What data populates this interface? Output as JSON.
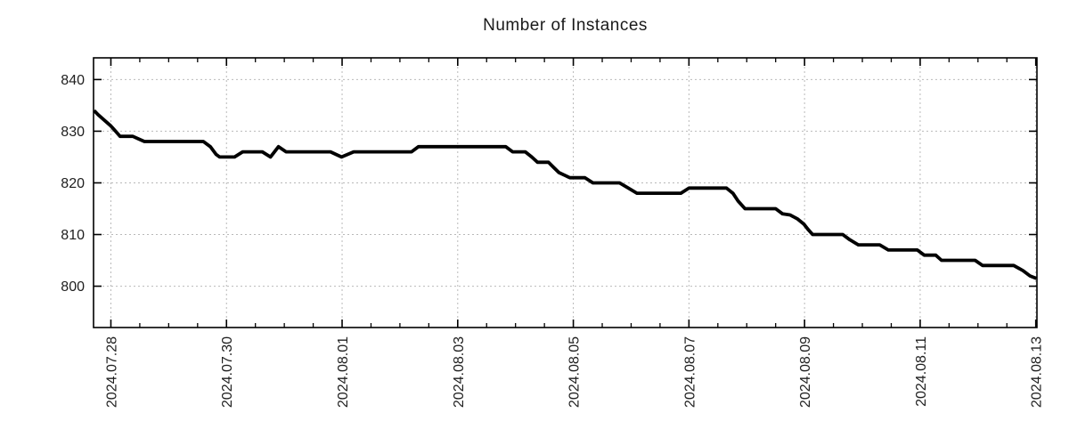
{
  "chart_data": {
    "type": "line",
    "title": "Number of Instances",
    "x_axis": {
      "tick_labels": [
        "2024.07.28",
        "2024.07.30",
        "2024.08.01",
        "2024.08.03",
        "2024.08.05",
        "2024.08.07",
        "2024.08.09",
        "2024.08.11",
        "2024.08.13"
      ],
      "tick_days": [
        0,
        2,
        4,
        6,
        8,
        10,
        12,
        14,
        16
      ],
      "minor_tick_interval_days": 0.5,
      "range_days": [
        -0.3,
        16.02
      ],
      "label_rotation_deg": -90
    },
    "y_axis": {
      "ticks": [
        800,
        810,
        820,
        830,
        840
      ],
      "range": [
        792.0,
        844.2
      ]
    },
    "grid": true,
    "legend": false,
    "colors": {
      "line": "#000000",
      "grid": "#b9b9b9",
      "frame": "#000000",
      "text": "#202020"
    },
    "series": [
      {
        "name": "instances",
        "points": [
          [
            -0.29,
            834
          ],
          [
            -0.22,
            833.2
          ],
          [
            -0.12,
            832.2
          ],
          [
            0.0,
            831
          ],
          [
            0.08,
            830
          ],
          [
            0.16,
            829
          ],
          [
            0.38,
            829
          ],
          [
            0.48,
            828.5
          ],
          [
            0.58,
            828
          ],
          [
            1.6,
            828
          ],
          [
            1.72,
            827
          ],
          [
            1.82,
            825.5
          ],
          [
            1.88,
            825
          ],
          [
            2.14,
            825
          ],
          [
            2.28,
            826
          ],
          [
            2.62,
            826
          ],
          [
            2.76,
            825
          ],
          [
            2.9,
            827
          ],
          [
            3.03,
            826
          ],
          [
            3.8,
            826
          ],
          [
            3.99,
            825
          ],
          [
            4.2,
            826
          ],
          [
            5.2,
            826
          ],
          [
            5.32,
            827
          ],
          [
            6.83,
            827
          ],
          [
            6.95,
            826
          ],
          [
            7.17,
            826
          ],
          [
            7.28,
            825
          ],
          [
            7.38,
            824
          ],
          [
            7.57,
            824
          ],
          [
            7.66,
            823
          ],
          [
            7.75,
            822
          ],
          [
            7.94,
            821
          ],
          [
            8.2,
            821
          ],
          [
            8.34,
            820
          ],
          [
            8.8,
            820
          ],
          [
            8.95,
            819
          ],
          [
            9.1,
            818
          ],
          [
            9.86,
            818
          ],
          [
            10.0,
            819
          ],
          [
            10.65,
            819
          ],
          [
            10.76,
            818
          ],
          [
            10.85,
            816.5
          ],
          [
            10.97,
            815
          ],
          [
            11.5,
            815
          ],
          [
            11.62,
            814
          ],
          [
            11.75,
            813.8
          ],
          [
            11.88,
            813
          ],
          [
            11.99,
            812
          ],
          [
            12.06,
            811
          ],
          [
            12.14,
            810
          ],
          [
            12.66,
            810
          ],
          [
            12.78,
            809
          ],
          [
            12.93,
            808
          ],
          [
            13.3,
            808
          ],
          [
            13.45,
            807
          ],
          [
            13.95,
            807
          ],
          [
            14.07,
            806
          ],
          [
            14.27,
            806
          ],
          [
            14.37,
            805
          ],
          [
            14.95,
            805
          ],
          [
            15.08,
            804
          ],
          [
            15.62,
            804
          ],
          [
            15.78,
            803
          ],
          [
            15.9,
            802
          ],
          [
            16.01,
            801.5
          ]
        ]
      }
    ]
  }
}
